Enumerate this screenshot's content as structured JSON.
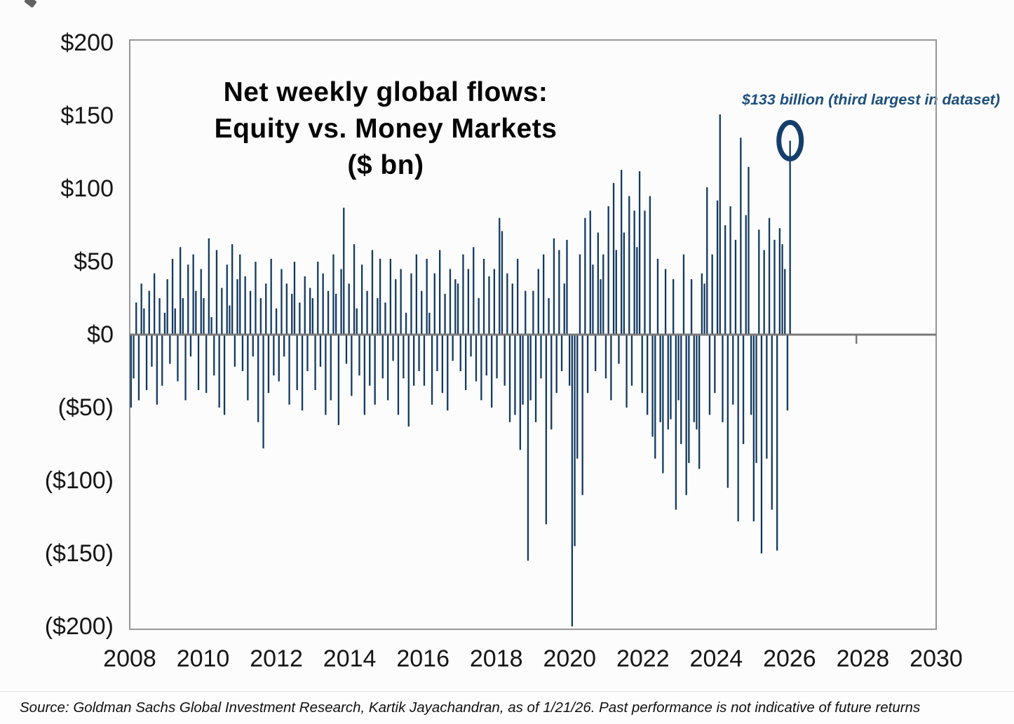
{
  "page": {
    "background": "#fcfcfc"
  },
  "chart_data": {
    "type": "bar",
    "title_lines": [
      "Net weekly global flows:",
      "Equity vs. Money Markets",
      "($ bn)"
    ],
    "unit": "$ bn",
    "frequency": "weekly",
    "legend": "none",
    "grid": "off",
    "x_axis": {
      "range": [
        2008,
        2030
      ],
      "tick_years": [
        2008,
        2010,
        2012,
        2014,
        2016,
        2018,
        2020,
        2022,
        2024,
        2026,
        2028,
        2030
      ],
      "zero_axis_extra_tick_year": 2027.8
    },
    "y_axis": {
      "range": [
        -202,
        202
      ],
      "ticks": [
        {
          "label": "$200",
          "value": 200
        },
        {
          "label": "$150",
          "value": 150
        },
        {
          "label": "$100",
          "value": 100
        },
        {
          "label": "$50",
          "value": 50
        },
        {
          "label": "$0",
          "value": 0
        },
        {
          "label": "($50)",
          "value": -50
        },
        {
          "label": "($100)",
          "value": -100
        },
        {
          "label": "($150)",
          "value": -150
        },
        {
          "label": "($200)",
          "value": -200
        }
      ]
    },
    "series": {
      "name": "Net weekly global flows: Equity vs. Money Markets ($ bn)",
      "x_start_year": 2008.0,
      "x_end_year": 2026.05,
      "values": [
        -50,
        -30,
        22,
        -45,
        35,
        18,
        -38,
        30,
        -22,
        42,
        -48,
        25,
        -35,
        15,
        38,
        -20,
        52,
        18,
        -32,
        60,
        25,
        -45,
        48,
        -15,
        55,
        30,
        -38,
        45,
        25,
        -40,
        66,
        12,
        -28,
        58,
        -50,
        32,
        -55,
        48,
        20,
        62,
        -22,
        38,
        55,
        -25,
        40,
        -45,
        30,
        -15,
        50,
        -60,
        25,
        -78,
        35,
        -40,
        52,
        -28,
        18,
        -32,
        45,
        -15,
        35,
        -48,
        28,
        50,
        -38,
        22,
        -52,
        40,
        -25,
        32,
        25,
        -38,
        50,
        -22,
        42,
        -55,
        30,
        -45,
        55,
        28,
        -62,
        45,
        87,
        -20,
        35,
        -42,
        62,
        18,
        -28,
        48,
        -55,
        30,
        -35,
        58,
        -48,
        25,
        52,
        -30,
        22,
        -45,
        52,
        -18,
        38,
        -55,
        45,
        -30,
        15,
        -63,
        42,
        -35,
        55,
        -25,
        30,
        -35,
        52,
        15,
        -48,
        42,
        -25,
        58,
        -40,
        28,
        -52,
        45,
        -18,
        38,
        35,
        -25,
        55,
        -38,
        45,
        -15,
        60,
        -32,
        25,
        -45,
        52,
        -28,
        40,
        -50,
        45,
        -30,
        80,
        71,
        -35,
        42,
        -60,
        35,
        -55,
        52,
        -79,
        -48,
        30,
        -155,
        -45,
        30,
        -60,
        45,
        -30,
        55,
        -130,
        25,
        -65,
        66,
        -40,
        58,
        -25,
        35,
        65,
        -35,
        -200,
        -145,
        -85,
        55,
        -110,
        80,
        -40,
        85,
        48,
        -25,
        70,
        38,
        55,
        -30,
        88,
        -45,
        104,
        58,
        -20,
        113,
        70,
        -50,
        95,
        -35,
        85,
        60,
        112,
        -40,
        85,
        -55,
        95,
        -70,
        -85,
        52,
        -60,
        -95,
        45,
        -65,
        -58,
        38,
        -120,
        -45,
        -75,
        55,
        -110,
        -88,
        38,
        -60,
        -65,
        -92,
        42,
        35,
        101,
        -55,
        55,
        -40,
        92,
        151,
        -60,
        75,
        -105,
        88,
        -48,
        65,
        -128,
        135,
        -75,
        82,
        115,
        -55,
        -128,
        -88,
        72,
        -150,
        58,
        -85,
        80,
        -120,
        65,
        -148,
        73,
        62,
        45,
        -52,
        133
      ]
    },
    "annotation": {
      "text": "$133 billion (third largest in dataset)",
      "value": 133,
      "target": "last-bar",
      "marker": "ellipse-outline"
    },
    "colors": {
      "bar": "#133a60",
      "zero_line": "#7a7a7a",
      "plot_border": "#979797",
      "annotation_text": "#1d4f7c",
      "highlight_circle": "#153f6b",
      "axis_text": "#161616",
      "title_text": "#050505"
    }
  },
  "footer": {
    "source": "Source: Goldman Sachs Global Investment Research, Kartik Jayachandran, as of 1/21/26. Past performance is not indicative of future returns"
  }
}
